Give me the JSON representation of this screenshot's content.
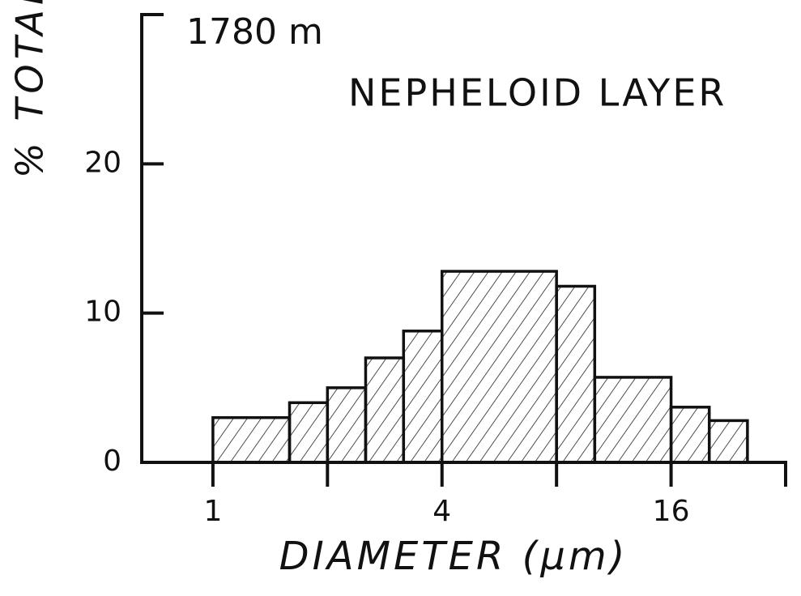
{
  "chart_data": {
    "type": "histogram",
    "annotations": [
      "1780 m",
      "NEPHELOID LAYER"
    ],
    "x_label": "DIAMETER (μm)",
    "y_label": "% TOTAL",
    "bins": [
      1,
      1.59,
      2,
      2.52,
      3.17,
      4,
      8,
      10.08,
      16,
      20.16,
      25.4
    ],
    "values": [
      3,
      4,
      5,
      7,
      8.8,
      12.8,
      11.8,
      5.7,
      3.7,
      2.8
    ],
    "color": "#111111",
    "hatch": true,
    "log_x": true,
    "log_base": 2,
    "xlim": [
      0.65,
      32
    ],
    "xticks": [
      1,
      4,
      16
    ],
    "xminorticks": [
      2,
      8,
      32
    ],
    "ylim": [
      0,
      30
    ],
    "yticks": [
      0,
      10,
      20
    ]
  }
}
